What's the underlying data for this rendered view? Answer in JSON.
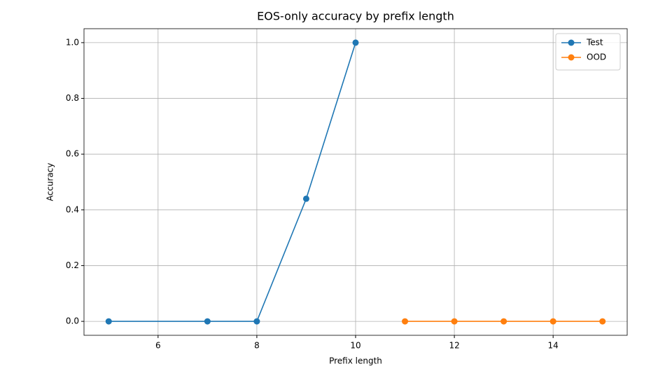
{
  "chart_data": {
    "type": "line",
    "title": "EOS-only accuracy by prefix length",
    "x_label": "Prefix length",
    "y_label": "Accuracy",
    "series": [
      {
        "name": "Test",
        "color": "#1f77b4",
        "x": [
          5,
          7,
          8,
          9,
          10
        ],
        "values": [
          0,
          0,
          0,
          0.44,
          1
        ]
      },
      {
        "name": "OOD",
        "color": "#ff7f0e",
        "x": [
          11,
          12,
          13,
          14,
          15
        ],
        "values": [
          0,
          0,
          0,
          0,
          0
        ]
      }
    ],
    "xlim": [
      4.5,
      15.5
    ],
    "xticks": [
      6,
      8,
      10,
      12,
      14
    ],
    "ylim": [
      -0.05,
      1.05
    ],
    "yticks": [
      {
        "value": 0,
        "label": "0.0"
      },
      {
        "value": 0.2,
        "label": "0.2"
      },
      {
        "value": 0.4,
        "label": "0.4"
      },
      {
        "value": 0.6,
        "label": "0.6"
      },
      {
        "value": 0.8,
        "label": "0.8"
      },
      {
        "value": 1,
        "label": "1.0"
      }
    ],
    "grid": true,
    "legend": "upper right"
  }
}
